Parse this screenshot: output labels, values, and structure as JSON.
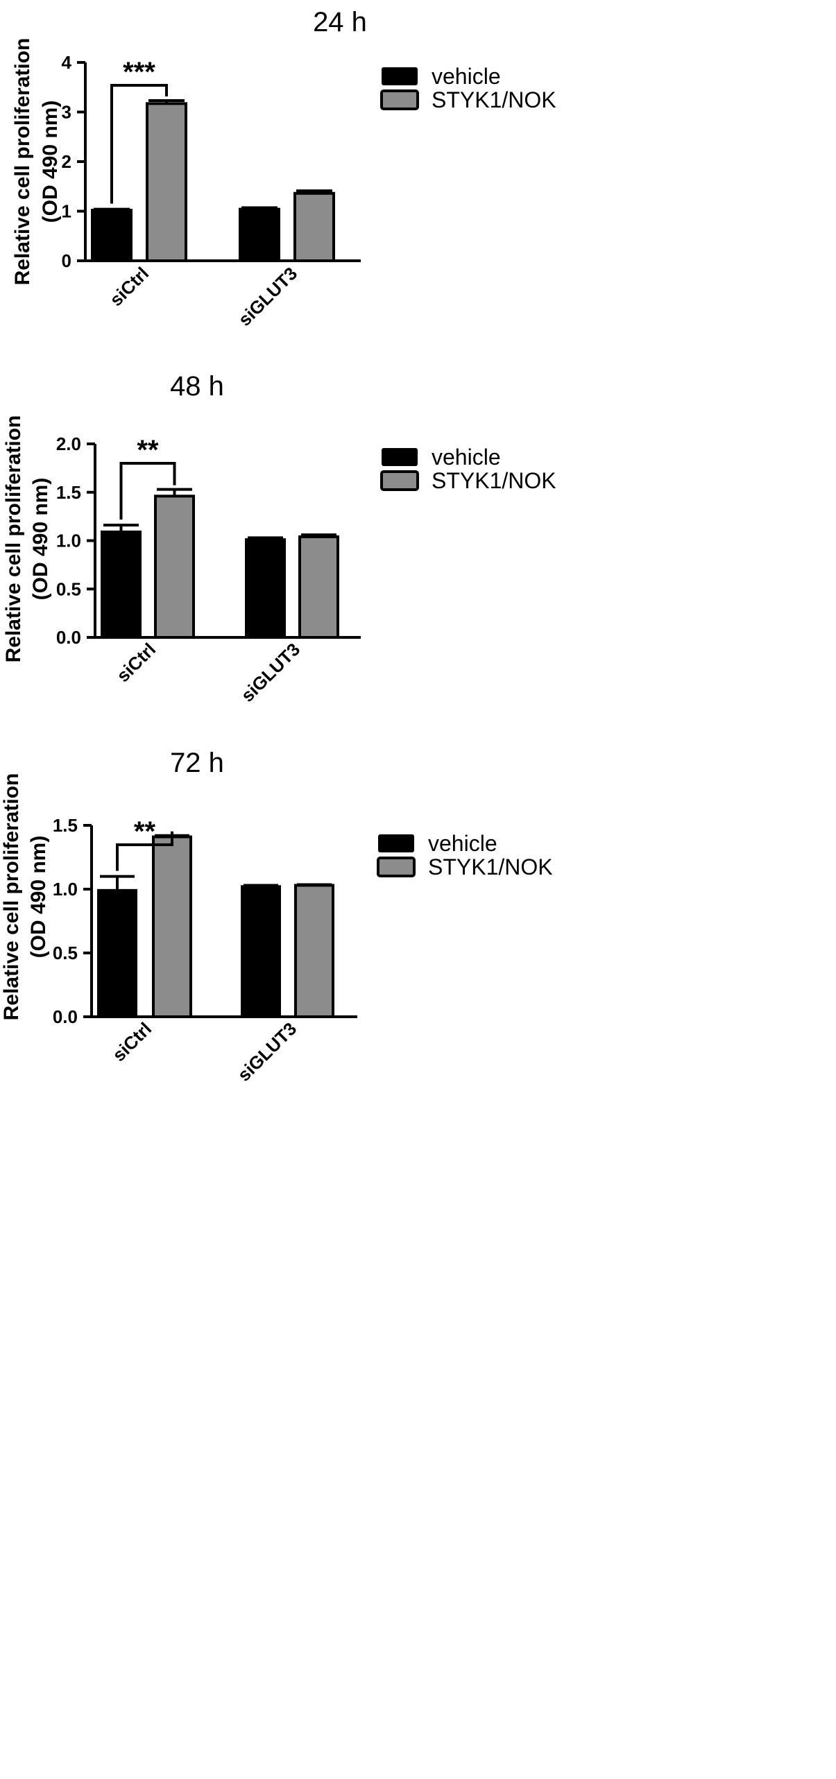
{
  "colors": {
    "vehicle": "#000000",
    "styk1": "#8c8c8c"
  },
  "chart_data": [
    {
      "type": "bar",
      "title": "24 h",
      "ylabel_line1": "Relative cell proliferation",
      "ylabel_line2": "(OD 490 nm)",
      "categories": [
        "siCtrl",
        "siGLUT3"
      ],
      "ylim": [
        0,
        4
      ],
      "yticks": [
        "0",
        "1",
        "2",
        "3",
        "4"
      ],
      "series": [
        {
          "name": "vehicle",
          "values": [
            1.02,
            1.04
          ],
          "errors": [
            0.02,
            0.03
          ]
        },
        {
          "name": "STYK1/NOK",
          "values": [
            3.17,
            1.36
          ],
          "errors": [
            0.06,
            0.05
          ]
        }
      ],
      "significance": {
        "category": "siCtrl",
        "label": "***"
      },
      "legend": "right"
    },
    {
      "type": "bar",
      "title": "48 h",
      "ylabel_line1": "Relative cell proliferation",
      "ylabel_line2": "(OD 490 nm)",
      "categories": [
        "siCtrl",
        "siGLUT3"
      ],
      "ylim": [
        0,
        2.0
      ],
      "yticks": [
        "0.0",
        "0.5",
        "1.0",
        "1.5",
        "2.0"
      ],
      "series": [
        {
          "name": "vehicle",
          "values": [
            1.09,
            1.01
          ],
          "errors": [
            0.07,
            0.02
          ]
        },
        {
          "name": "STYK1/NOK",
          "values": [
            1.46,
            1.04
          ],
          "errors": [
            0.07,
            0.02
          ]
        }
      ],
      "significance": {
        "category": "siCtrl",
        "label": "**"
      },
      "legend": "right"
    },
    {
      "type": "bar",
      "title": "72 h",
      "ylabel_line1": "Relative cell proliferation",
      "ylabel_line2": "(OD 490 nm)",
      "categories": [
        "siCtrl",
        "siGLUT3"
      ],
      "ylim": [
        0,
        1.5
      ],
      "yticks": [
        "0.0",
        "0.5",
        "1.0",
        "1.5"
      ],
      "series": [
        {
          "name": "vehicle",
          "values": [
            0.99,
            1.02
          ],
          "errors": [
            0.11,
            0.01
          ]
        },
        {
          "name": "STYK1/NOK",
          "values": [
            1.41,
            1.03
          ],
          "errors": [
            0.01,
            0.005
          ]
        }
      ],
      "significance": {
        "category": "siCtrl",
        "label": "**"
      },
      "legend": "right"
    }
  ]
}
